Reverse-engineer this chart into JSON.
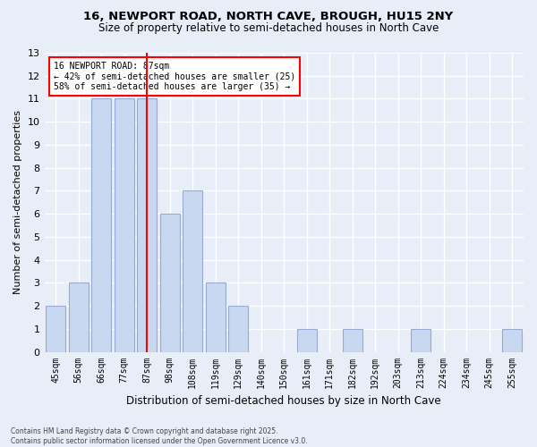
{
  "title1": "16, NEWPORT ROAD, NORTH CAVE, BROUGH, HU15 2NY",
  "title2": "Size of property relative to semi-detached houses in North Cave",
  "xlabel": "Distribution of semi-detached houses by size in North Cave",
  "ylabel": "Number of semi-detached properties",
  "categories": [
    "45sqm",
    "56sqm",
    "66sqm",
    "77sqm",
    "87sqm",
    "98sqm",
    "108sqm",
    "119sqm",
    "129sqm",
    "140sqm",
    "150sqm",
    "161sqm",
    "171sqm",
    "182sqm",
    "192sqm",
    "203sqm",
    "213sqm",
    "224sqm",
    "234sqm",
    "245sqm",
    "255sqm"
  ],
  "values": [
    2,
    3,
    11,
    11,
    11,
    6,
    7,
    3,
    2,
    0,
    0,
    1,
    0,
    1,
    0,
    0,
    1,
    0,
    0,
    0,
    1
  ],
  "bar_color": "#c8d8f0",
  "bar_edge_color": "#99aad0",
  "red_line_index": 4,
  "ylim": [
    0,
    13
  ],
  "yticks": [
    0,
    1,
    2,
    3,
    4,
    5,
    6,
    7,
    8,
    9,
    10,
    11,
    12,
    13
  ],
  "annotation_title": "16 NEWPORT ROAD: 87sqm",
  "annotation_line1": "← 42% of semi-detached houses are smaller (25)",
  "annotation_line2": "58% of semi-detached houses are larger (35) →",
  "footer1": "Contains HM Land Registry data © Crown copyright and database right 2025.",
  "footer2": "Contains public sector information licensed under the Open Government Licence v3.0.",
  "bg_color": "#e8eef8",
  "grid_color": "#ffffff"
}
